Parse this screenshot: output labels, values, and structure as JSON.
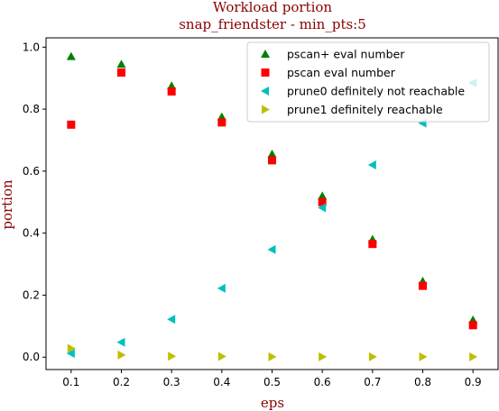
{
  "chart_data": {
    "type": "scatter",
    "title": "Workload portion",
    "subtitle": "snap_friendster - min_pts:5",
    "xlabel": "eps",
    "ylabel": "portion",
    "xlim": [
      0.05,
      0.95
    ],
    "ylim": [
      -0.04,
      1.03
    ],
    "x_ticks": [
      "0.1",
      "0.2",
      "0.3",
      "0.4",
      "0.5",
      "0.6",
      "0.7",
      "0.8",
      "0.9"
    ],
    "y_ticks": [
      "0.0",
      "0.2",
      "0.4",
      "0.6",
      "0.8",
      "1.0"
    ],
    "x_tick_values": [
      0.1,
      0.2,
      0.3,
      0.4,
      0.5,
      0.6,
      0.7,
      0.8,
      0.9
    ],
    "y_tick_values": [
      0.0,
      0.2,
      0.4,
      0.6,
      0.8,
      1.0
    ],
    "grid": false,
    "legend_position": "upper right",
    "series": [
      {
        "name": "pscan+ eval number",
        "marker": "triangle-up",
        "color": "#008000",
        "x": [
          0.1,
          0.2,
          0.3,
          0.4,
          0.5,
          0.6,
          0.7,
          0.8,
          0.9
        ],
        "y": [
          0.97,
          0.945,
          0.875,
          0.775,
          0.655,
          0.52,
          0.38,
          0.245,
          0.12
        ]
      },
      {
        "name": "pscan eval number",
        "marker": "square",
        "color": "#ff0000",
        "x": [
          0.1,
          0.2,
          0.3,
          0.4,
          0.5,
          0.6,
          0.7,
          0.8,
          0.9
        ],
        "y": [
          0.75,
          0.918,
          0.857,
          0.757,
          0.635,
          0.5,
          0.365,
          0.23,
          0.103
        ]
      },
      {
        "name": "prune0 definitely not reachable",
        "marker": "triangle-left",
        "color": "#00bfbf",
        "x": [
          0.1,
          0.2,
          0.3,
          0.4,
          0.5,
          0.6,
          0.7,
          0.8,
          0.9
        ],
        "y": [
          0.012,
          0.048,
          0.122,
          0.222,
          0.347,
          0.482,
          0.62,
          0.755,
          0.885
        ]
      },
      {
        "name": "prune1 definitely reachable",
        "marker": "triangle-right",
        "color": "#bfbf00",
        "x": [
          0.1,
          0.2,
          0.3,
          0.4,
          0.5,
          0.6,
          0.7,
          0.8,
          0.9
        ],
        "y": [
          0.028,
          0.007,
          0.003,
          0.002,
          0.001,
          0.001,
          0.001,
          0.001,
          0.001
        ]
      }
    ]
  }
}
